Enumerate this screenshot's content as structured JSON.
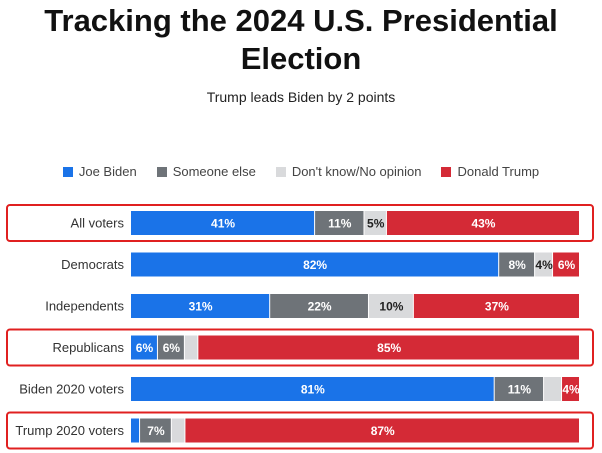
{
  "chart_data": {
    "type": "bar",
    "orientation": "horizontal-stacked",
    "title": "Tracking the 2024 U.S. Presidential Election",
    "subtitle": "Trump leads Biden by 2 points",
    "categories": [
      "All voters",
      "Democrats",
      "Independents",
      "Republicans",
      "Biden 2020 voters",
      "Trump 2020 voters"
    ],
    "highlighted": [
      "All voters",
      "Republicans",
      "Trump 2020 voters"
    ],
    "series": [
      {
        "name": "Joe Biden",
        "color": "#1a73e8",
        "values": [
          41,
          82,
          31,
          6,
          81,
          2
        ],
        "labels": [
          "41%",
          "82%",
          "31%",
          "6%",
          "81%",
          ""
        ]
      },
      {
        "name": "Someone else",
        "color": "#6e7378",
        "values": [
          11,
          8,
          22,
          6,
          11,
          7
        ],
        "labels": [
          "11%",
          "8%",
          "22%",
          "6%",
          "11%",
          "7%"
        ]
      },
      {
        "name": "Don't know/No opinion",
        "color": "#d9dadc",
        "values": [
          5,
          4,
          10,
          3,
          4,
          3
        ],
        "labels": [
          "5%",
          "4%",
          "10%",
          "",
          "",
          ""
        ]
      },
      {
        "name": "Donald Trump",
        "color": "#d42a36",
        "values": [
          43,
          6,
          37,
          85,
          4,
          87
        ],
        "labels": [
          "43%",
          "6%",
          "37%",
          "85%",
          "4%",
          "87%"
        ]
      }
    ],
    "highlight_color": "#e02020"
  }
}
